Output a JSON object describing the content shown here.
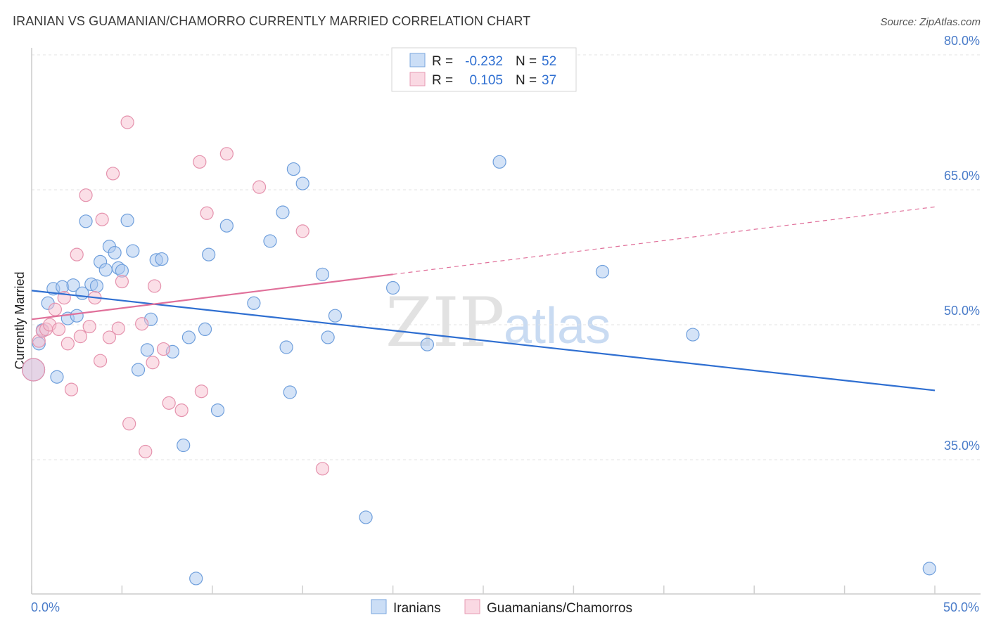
{
  "header": {
    "title": "IRANIAN VS GUAMANIAN/CHAMORRO CURRENTLY MARRIED CORRELATION CHART",
    "source": "Source: ZipAtlas.com"
  },
  "watermark": {
    "part1": "ZIP",
    "part2": "atlas"
  },
  "colors": {
    "blue": "#2f6fd1",
    "pink": "#e0709a",
    "blue_fill": "#a9c8f0",
    "pink_fill": "#f7bfd0",
    "axis_text": "#4a7cc9"
  },
  "legend_top": {
    "rows": [
      {
        "r_label": "R =",
        "r_value": "-0.232",
        "n_label": "N =",
        "n_value": "52"
      },
      {
        "r_label": "R =",
        "r_value": "0.105",
        "n_label": "N =",
        "n_value": "37"
      }
    ]
  },
  "legend_bottom": {
    "items": [
      "Iranians",
      "Guamanians/Chamorros"
    ]
  },
  "chart_data": {
    "type": "scatter",
    "title": "IRANIAN VS GUAMANIAN/CHAMORRO CURRENTLY MARRIED CORRELATION CHART",
    "xlabel": "",
    "ylabel": "Currently Married",
    "xlim": [
      0,
      50
    ],
    "ylim": [
      20,
      82
    ],
    "x_tick_labels": [
      "0.0%",
      "50.0%"
    ],
    "y_ticks": [
      35,
      50,
      65,
      80
    ],
    "y_tick_labels": [
      "35.0%",
      "50.0%",
      "65.0%",
      "80.0%"
    ],
    "grid": true,
    "legend_position": "top-center",
    "series": [
      {
        "name": "Iranians",
        "r": -0.232,
        "n": 52,
        "trend": {
          "x": [
            0,
            50
          ],
          "y": [
            53.8,
            42.7
          ]
        },
        "points": [
          [
            0.1,
            45.0
          ],
          [
            0.4,
            47.9
          ],
          [
            0.6,
            49.4
          ],
          [
            0.9,
            52.4
          ],
          [
            1.2,
            54.0
          ],
          [
            1.4,
            44.2
          ],
          [
            1.7,
            54.2
          ],
          [
            2.0,
            50.7
          ],
          [
            2.3,
            54.4
          ],
          [
            2.5,
            51.0
          ],
          [
            2.8,
            53.5
          ],
          [
            3.0,
            61.5
          ],
          [
            3.3,
            54.5
          ],
          [
            3.6,
            54.3
          ],
          [
            3.8,
            57.0
          ],
          [
            4.1,
            56.1
          ],
          [
            4.3,
            58.7
          ],
          [
            4.6,
            58.0
          ],
          [
            4.8,
            56.3
          ],
          [
            5.0,
            56.0
          ],
          [
            5.3,
            61.6
          ],
          [
            5.6,
            58.2
          ],
          [
            5.9,
            45.0
          ],
          [
            6.4,
            47.2
          ],
          [
            6.6,
            50.6
          ],
          [
            6.9,
            57.2
          ],
          [
            7.2,
            57.3
          ],
          [
            7.8,
            47.0
          ],
          [
            8.4,
            36.6
          ],
          [
            8.7,
            48.6
          ],
          [
            9.1,
            21.8
          ],
          [
            9.6,
            49.5
          ],
          [
            9.8,
            57.8
          ],
          [
            10.3,
            40.5
          ],
          [
            10.8,
            61.0
          ],
          [
            12.3,
            52.4
          ],
          [
            13.2,
            59.3
          ],
          [
            13.9,
            62.5
          ],
          [
            14.1,
            47.5
          ],
          [
            14.3,
            42.5
          ],
          [
            14.5,
            67.3
          ],
          [
            15.0,
            65.7
          ],
          [
            16.1,
            55.6
          ],
          [
            16.4,
            48.6
          ],
          [
            16.8,
            51.0
          ],
          [
            18.5,
            28.6
          ],
          [
            20.0,
            54.1
          ],
          [
            21.9,
            47.8
          ],
          [
            25.9,
            68.1
          ],
          [
            31.6,
            55.9
          ],
          [
            36.6,
            48.9
          ],
          [
            49.7,
            22.9
          ]
        ]
      },
      {
        "name": "Guamanians/Chamorros",
        "r": 0.105,
        "n": 37,
        "trend": {
          "x": [
            0,
            20
          ],
          "y": [
            50.6,
            55.6
          ],
          "dashed_to": [
            50,
            63.1
          ]
        },
        "points": [
          [
            0.1,
            45.0
          ],
          [
            0.4,
            48.2
          ],
          [
            0.6,
            49.3
          ],
          [
            0.8,
            49.5
          ],
          [
            1.0,
            50.0
          ],
          [
            1.3,
            51.7
          ],
          [
            1.5,
            49.5
          ],
          [
            1.8,
            53.0
          ],
          [
            2.0,
            47.9
          ],
          [
            2.2,
            42.8
          ],
          [
            2.5,
            57.8
          ],
          [
            2.7,
            48.7
          ],
          [
            3.0,
            64.4
          ],
          [
            3.2,
            49.8
          ],
          [
            3.5,
            53.0
          ],
          [
            3.8,
            46.0
          ],
          [
            3.9,
            61.7
          ],
          [
            4.3,
            48.6
          ],
          [
            4.5,
            66.8
          ],
          [
            4.8,
            49.6
          ],
          [
            5.0,
            54.8
          ],
          [
            5.3,
            72.5
          ],
          [
            5.4,
            39.0
          ],
          [
            6.1,
            50.1
          ],
          [
            6.3,
            35.9
          ],
          [
            6.7,
            45.8
          ],
          [
            6.8,
            54.3
          ],
          [
            7.3,
            47.3
          ],
          [
            7.6,
            41.3
          ],
          [
            8.3,
            40.5
          ],
          [
            9.3,
            68.1
          ],
          [
            9.4,
            42.6
          ],
          [
            9.7,
            62.4
          ],
          [
            10.8,
            69.0
          ],
          [
            12.6,
            65.3
          ],
          [
            15.0,
            60.4
          ],
          [
            16.1,
            34.0
          ]
        ]
      }
    ]
  }
}
